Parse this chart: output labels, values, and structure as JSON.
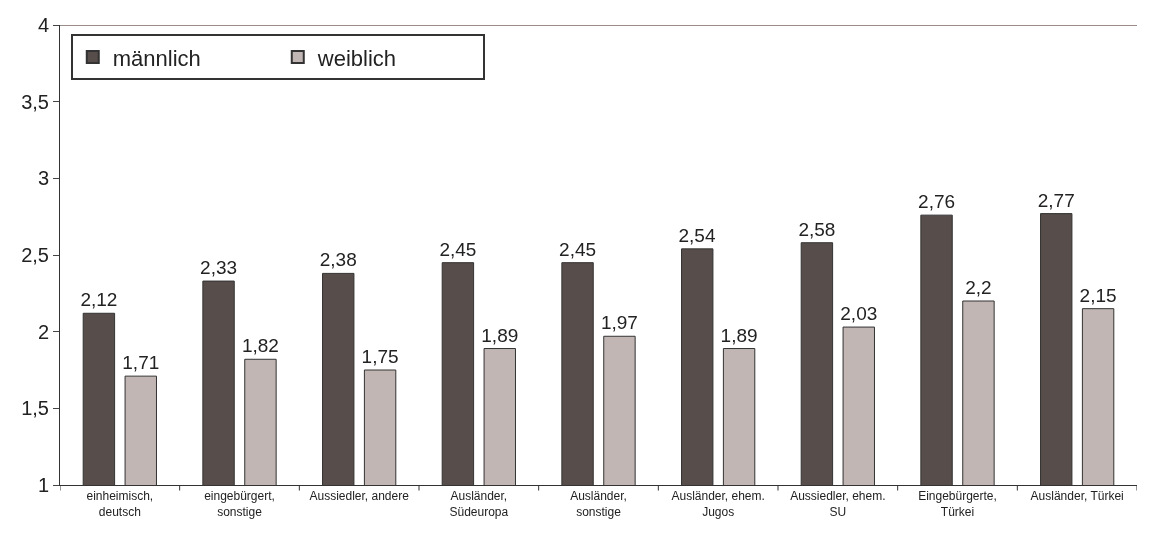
{
  "chart_data": {
    "type": "bar",
    "categories": [
      "einheimisch,\ndeutsch",
      "eingebürgert,\nsonstige",
      "Aussiedler, andere",
      "Ausländer,\nSüdeuropa",
      "Ausländer,\nsonstige",
      "Ausländer, ehem.\nJugos",
      "Aussiedler, ehem.\nSU",
      "Eingebürgerte,\nTürkei",
      "Ausländer, Türkei"
    ],
    "series": [
      {
        "name": "männlich",
        "color": "#574d4a",
        "values": [
          2.12,
          2.33,
          2.38,
          2.45,
          2.45,
          2.54,
          2.58,
          2.76,
          2.77
        ],
        "value_labels": [
          "2,12",
          "2,33",
          "2,38",
          "2,45",
          "2,45",
          "2,54",
          "2,58",
          "2,76",
          "2,77"
        ]
      },
      {
        "name": "weiblich",
        "color": "#c1b6b3",
        "values": [
          1.71,
          1.82,
          1.75,
          1.89,
          1.97,
          1.89,
          2.03,
          2.2,
          2.15
        ],
        "value_labels": [
          "1,71",
          "1,82",
          "1,75",
          "1,89",
          "1,97",
          "1,89",
          "2,03",
          "2,2",
          "2,15"
        ]
      }
    ],
    "ylim": [
      1,
      4
    ],
    "yticks": [
      {
        "value": 1,
        "label": "1"
      },
      {
        "value": 1.5,
        "label": "1,5"
      },
      {
        "value": 2,
        "label": "2"
      },
      {
        "value": 2.5,
        "label": "2,5"
      },
      {
        "value": 3,
        "label": "3"
      },
      {
        "value": 3.5,
        "label": "3,5"
      },
      {
        "value": 4,
        "label": "4"
      }
    ],
    "legend": "top left"
  }
}
